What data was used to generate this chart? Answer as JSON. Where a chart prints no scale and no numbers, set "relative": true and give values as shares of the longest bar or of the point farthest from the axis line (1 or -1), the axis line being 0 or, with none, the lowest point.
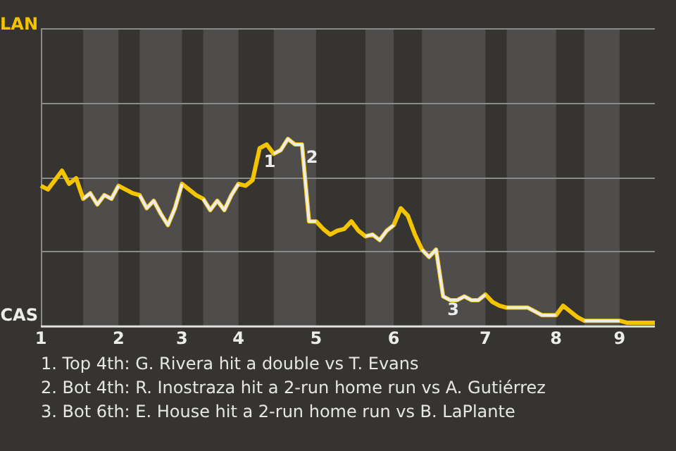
{
  "chart_data": {
    "type": "line",
    "relative": true,
    "categories": [
      "1",
      null,
      null,
      null,
      null,
      null,
      null,
      null,
      null,
      null,
      null,
      "2",
      null,
      null,
      null,
      null,
      null,
      null,
      null,
      null,
      "3",
      null,
      null,
      null,
      null,
      null,
      null,
      null,
      "4",
      null,
      null,
      null,
      null,
      null,
      null,
      null,
      null,
      null,
      null,
      "5",
      null,
      null,
      null,
      null,
      null,
      null,
      null,
      null,
      null,
      null,
      "6",
      null,
      null,
      null,
      null,
      null,
      null,
      null,
      null,
      null,
      null,
      null,
      null,
      "7",
      null,
      null,
      null,
      null,
      null,
      null,
      null,
      null,
      null,
      "8",
      null,
      null,
      null,
      null,
      null,
      null,
      null,
      null,
      "9",
      null,
      null,
      null,
      null,
      null
    ],
    "series": [
      {
        "color": "#f5c400",
        "values": [
          0.75,
          0.73,
          0.78,
          0.83,
          0.76,
          0.79,
          0.68,
          0.71,
          0.65,
          0.7,
          0.68,
          0.75,
          0.73,
          0.71,
          0.7,
          0.63,
          0.67,
          0.6,
          0.54,
          0.63,
          0.76,
          0.73,
          0.7,
          0.68,
          0.62,
          0.67,
          0.62,
          0.7,
          0.76,
          0.75,
          0.78,
          0.95,
          0.97,
          0.92,
          0.94,
          1,
          0.97,
          0.97,
          0.56,
          0.56,
          0.52,
          0.49,
          0.51,
          0.52,
          0.56,
          0.51,
          0.48,
          0.49,
          0.46,
          0.51,
          0.54,
          0.63,
          0.59,
          0.49,
          0.41,
          0.37,
          0.41,
          0.16,
          0.14,
          0.14,
          0.16,
          0.14,
          0.14,
          0.17,
          0.13,
          0.11,
          0.1,
          0.1,
          0.1,
          0.1,
          0.08,
          0.06,
          0.06,
          0.06,
          0.11,
          0.08,
          0.05,
          0.03,
          0.03,
          0.03,
          0.03,
          0.03,
          0.03,
          0.02,
          0.02,
          0.02,
          0.02,
          0.02
        ]
      },
      {
        "color": "#ececec",
        "values": [
          null,
          null,
          null,
          null,
          null,
          null,
          0.68,
          0.71,
          0.65,
          0.7,
          0.68,
          0.75,
          null,
          null,
          0.7,
          0.63,
          0.67,
          0.6,
          0.54,
          0.63,
          0.76,
          null,
          null,
          0.68,
          0.62,
          0.67,
          0.62,
          0.7,
          0.76,
          null,
          null,
          null,
          null,
          0.92,
          0.94,
          1,
          0.97,
          0.97,
          0.56,
          0.56,
          null,
          null,
          null,
          null,
          null,
          null,
          0.48,
          0.49,
          0.46,
          0.51,
          0.54,
          null,
          null,
          null,
          0.41,
          0.37,
          0.41,
          0.16,
          0.14,
          0.14,
          0.16,
          0.14,
          0.14,
          0.17,
          null,
          null,
          0.1,
          0.1,
          0.1,
          0.1,
          0.08,
          0.06,
          0.06,
          0.06,
          null,
          null,
          null,
          0.03,
          0.03,
          0.03,
          0.03,
          0.03,
          0.03,
          null,
          null,
          null,
          null,
          null
        ]
      }
    ],
    "ref_lines": [
      {
        "axis": "y",
        "value": 0.4,
        "color": "#8a8a8a"
      },
      {
        "axis": "y",
        "value": 0.79,
        "color": "#8a8a8a"
      },
      {
        "axis": "y",
        "value": 1.19,
        "color": "#8a8a8a"
      },
      {
        "axis": "y",
        "value": 1.59,
        "color": "#8a8a8a"
      }
    ],
    "legend": false,
    "annotations": [
      "LAN",
      "CAS",
      "1",
      "2",
      "3",
      "1. Top 4th: G. Rivera hit a double vs T. Evans",
      "2. Bot 4th: R. Inostraza hit a 2-run home run vs A. Gutiérrez",
      "3. Bot 6th: E. House hit a 2-run home run vs B. LaPlante"
    ]
  }
}
